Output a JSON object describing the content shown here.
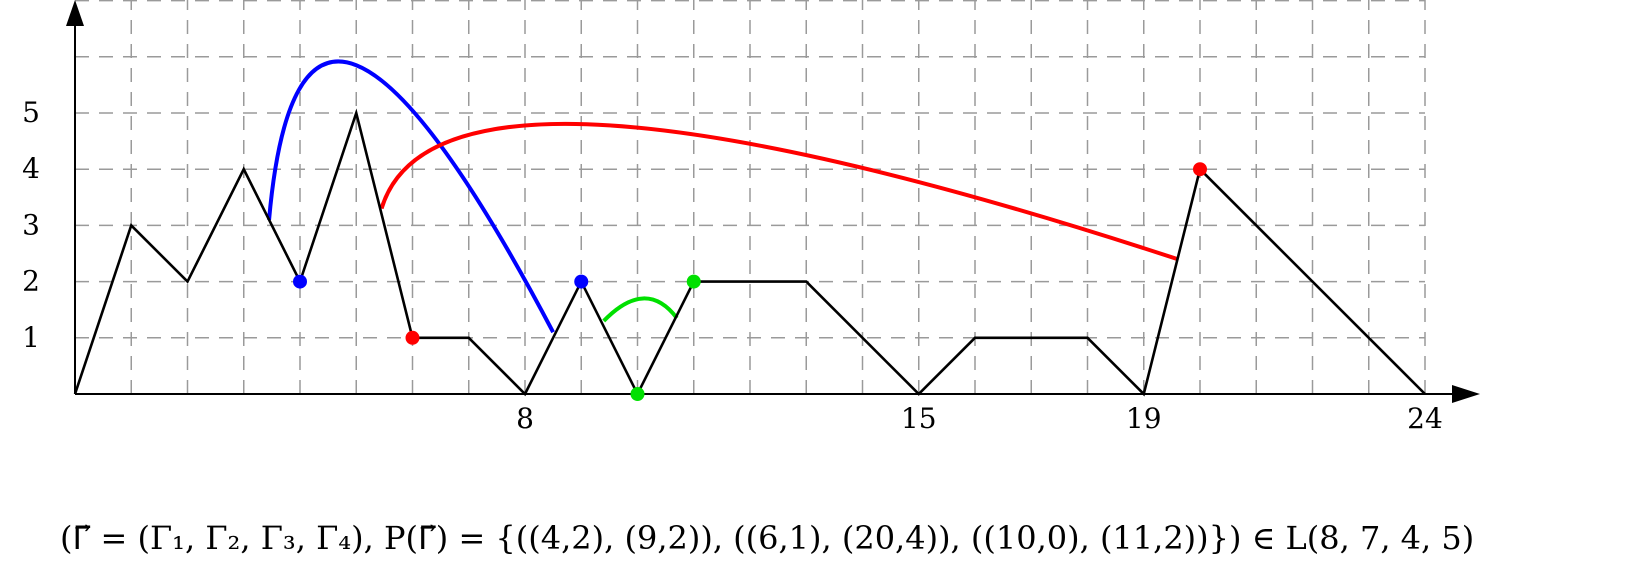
{
  "chart_data": {
    "type": "line",
    "x_ticks": [
      "8",
      "15",
      "19",
      "24"
    ],
    "y_ticks": [
      "1",
      "2",
      "3",
      "4",
      "5"
    ],
    "x_range": [
      0,
      24
    ],
    "y_range": [
      0,
      7
    ],
    "grid": true,
    "path": {
      "color": "#000000",
      "points": [
        [
          0,
          0
        ],
        [
          1,
          3
        ],
        [
          2,
          2
        ],
        [
          3,
          4
        ],
        [
          4,
          2
        ],
        [
          5,
          5
        ],
        [
          6,
          1
        ],
        [
          7,
          1
        ],
        [
          8,
          0
        ],
        [
          9,
          2
        ],
        [
          10,
          0
        ],
        [
          11,
          2
        ],
        [
          13,
          2
        ],
        [
          15,
          0
        ],
        [
          16,
          1
        ],
        [
          18,
          1
        ],
        [
          19,
          0
        ],
        [
          20,
          4
        ],
        [
          24,
          0
        ]
      ]
    },
    "pairs": [
      {
        "color": "#0000ff",
        "points": [
          [
            4,
            2
          ],
          [
            9,
            2
          ]
        ]
      },
      {
        "color": "#ff0000",
        "points": [
          [
            6,
            1
          ],
          [
            20,
            4
          ]
        ]
      },
      {
        "color": "#00e000",
        "points": [
          [
            10,
            0
          ],
          [
            11,
            2
          ]
        ]
      }
    ],
    "arcs": [
      {
        "color": "#0000ff",
        "from": [
          3.45,
          3.1
        ],
        "peak": [
          5.0,
          5.85
        ],
        "to": [
          8.5,
          1.1
        ]
      },
      {
        "color": "#ff0000",
        "from": [
          5.45,
          3.3
        ],
        "peak": [
          9.5,
          4.78
        ],
        "to": [
          19.6,
          2.4
        ]
      },
      {
        "color": "#00e000",
        "from": [
          9.4,
          1.3
        ],
        "peak": [
          10.1,
          1.7
        ],
        "to": [
          10.7,
          1.35
        ]
      }
    ]
  },
  "caption": "(Γ⃗ = (Γ₁, Γ₂, Γ₃, Γ₄), P(Γ⃗) = {((4,2), (9,2)), ((6,1), (20,4)), ((10,0), (11,2))}) ∈ L(8, 7, 4, 5)"
}
